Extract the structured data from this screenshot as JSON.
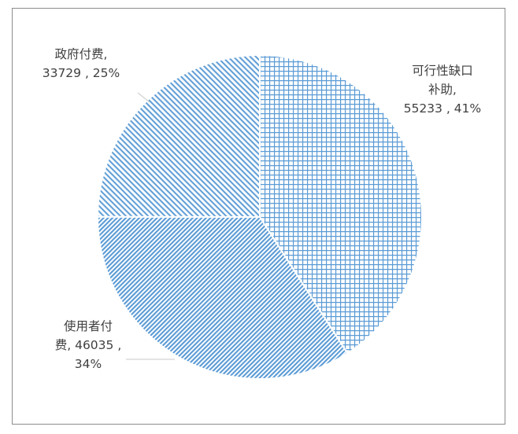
{
  "chart_data": {
    "type": "pie",
    "title": "",
    "slices": [
      {
        "label_lines": [
          "可行性缺口",
          "补助,",
          "55233 , 41%"
        ],
        "name": "可行性缺口补助",
        "value": 55233,
        "percent": 41,
        "pattern": "grid",
        "color": "#5b9bd5"
      },
      {
        "label_lines": [
          "使用者付",
          "费, 46035 ,",
          "34%"
        ],
        "name": "使用者付费",
        "value": 46035,
        "percent": 34,
        "pattern": "fine-diagonal",
        "color": "#5b9bd5"
      },
      {
        "label_lines": [
          "政府付费,",
          "33729 , 25%"
        ],
        "name": "政府付费",
        "value": 33729,
        "percent": 25,
        "pattern": "wide-diagonal",
        "color": "#5b9bd5"
      }
    ],
    "start_angle_deg": 0,
    "direction": "clockwise"
  }
}
